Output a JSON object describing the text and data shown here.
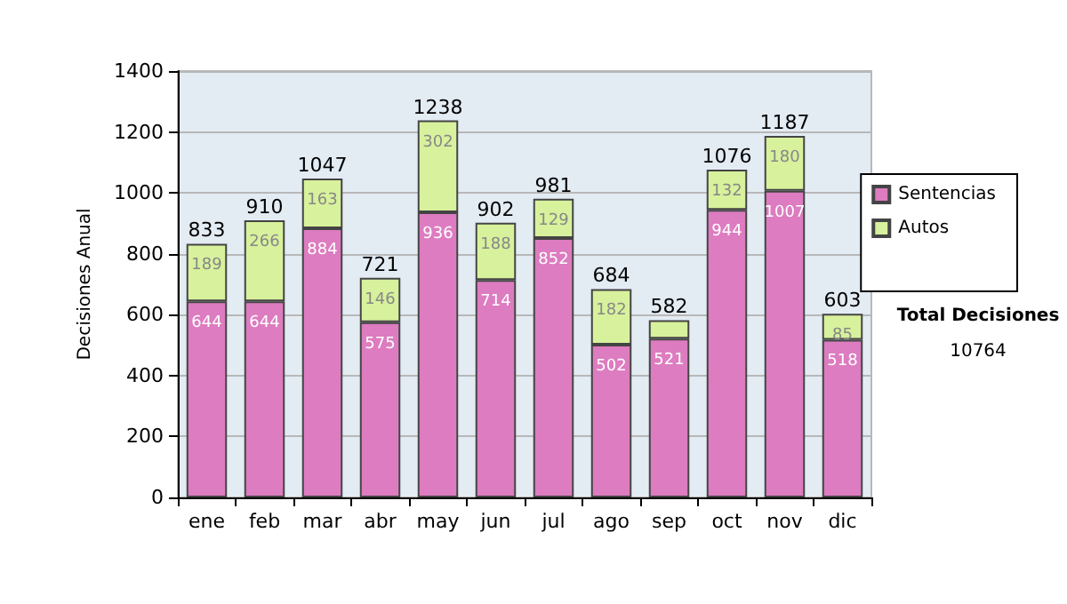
{
  "chart_data": {
    "type": "bar",
    "ylabel": "Decisiones Anual",
    "categories": [
      "ene",
      "feb",
      "mar",
      "abr",
      "may",
      "jun",
      "jul",
      "ago",
      "sep",
      "oct",
      "nov",
      "dic"
    ],
    "stacked": true,
    "series": [
      {
        "name": "Sentencias",
        "color": "#dd7cc0",
        "values": [
          644,
          644,
          884,
          575,
          936,
          714,
          852,
          502,
          521,
          944,
          1007,
          518
        ],
        "value_labels": [
          "644",
          "644",
          "884",
          "575",
          "936",
          "714",
          "852",
          "502",
          "521",
          "944",
          "1007",
          "518"
        ]
      },
      {
        "name": "Autos",
        "color": "#d8f19c",
        "values": [
          189,
          266,
          163,
          146,
          302,
          188,
          129,
          182,
          61,
          132,
          180,
          85
        ],
        "value_labels": [
          "189",
          "266",
          "163",
          "146",
          "302",
          "188",
          "129",
          "182",
          null,
          "132",
          "180",
          "85"
        ]
      }
    ],
    "totals": [
      "833",
      "910",
      "1047",
      "721",
      "1238",
      "902",
      "981",
      "684",
      "582",
      "1076",
      "1187",
      "603"
    ],
    "ylim": [
      0,
      1400
    ],
    "yticks": [
      0,
      200,
      400,
      600,
      800,
      1000,
      1200,
      1400
    ],
    "grid": "y",
    "legend": "right",
    "annotations": [
      "Total Decisiones",
      "10764"
    ]
  }
}
